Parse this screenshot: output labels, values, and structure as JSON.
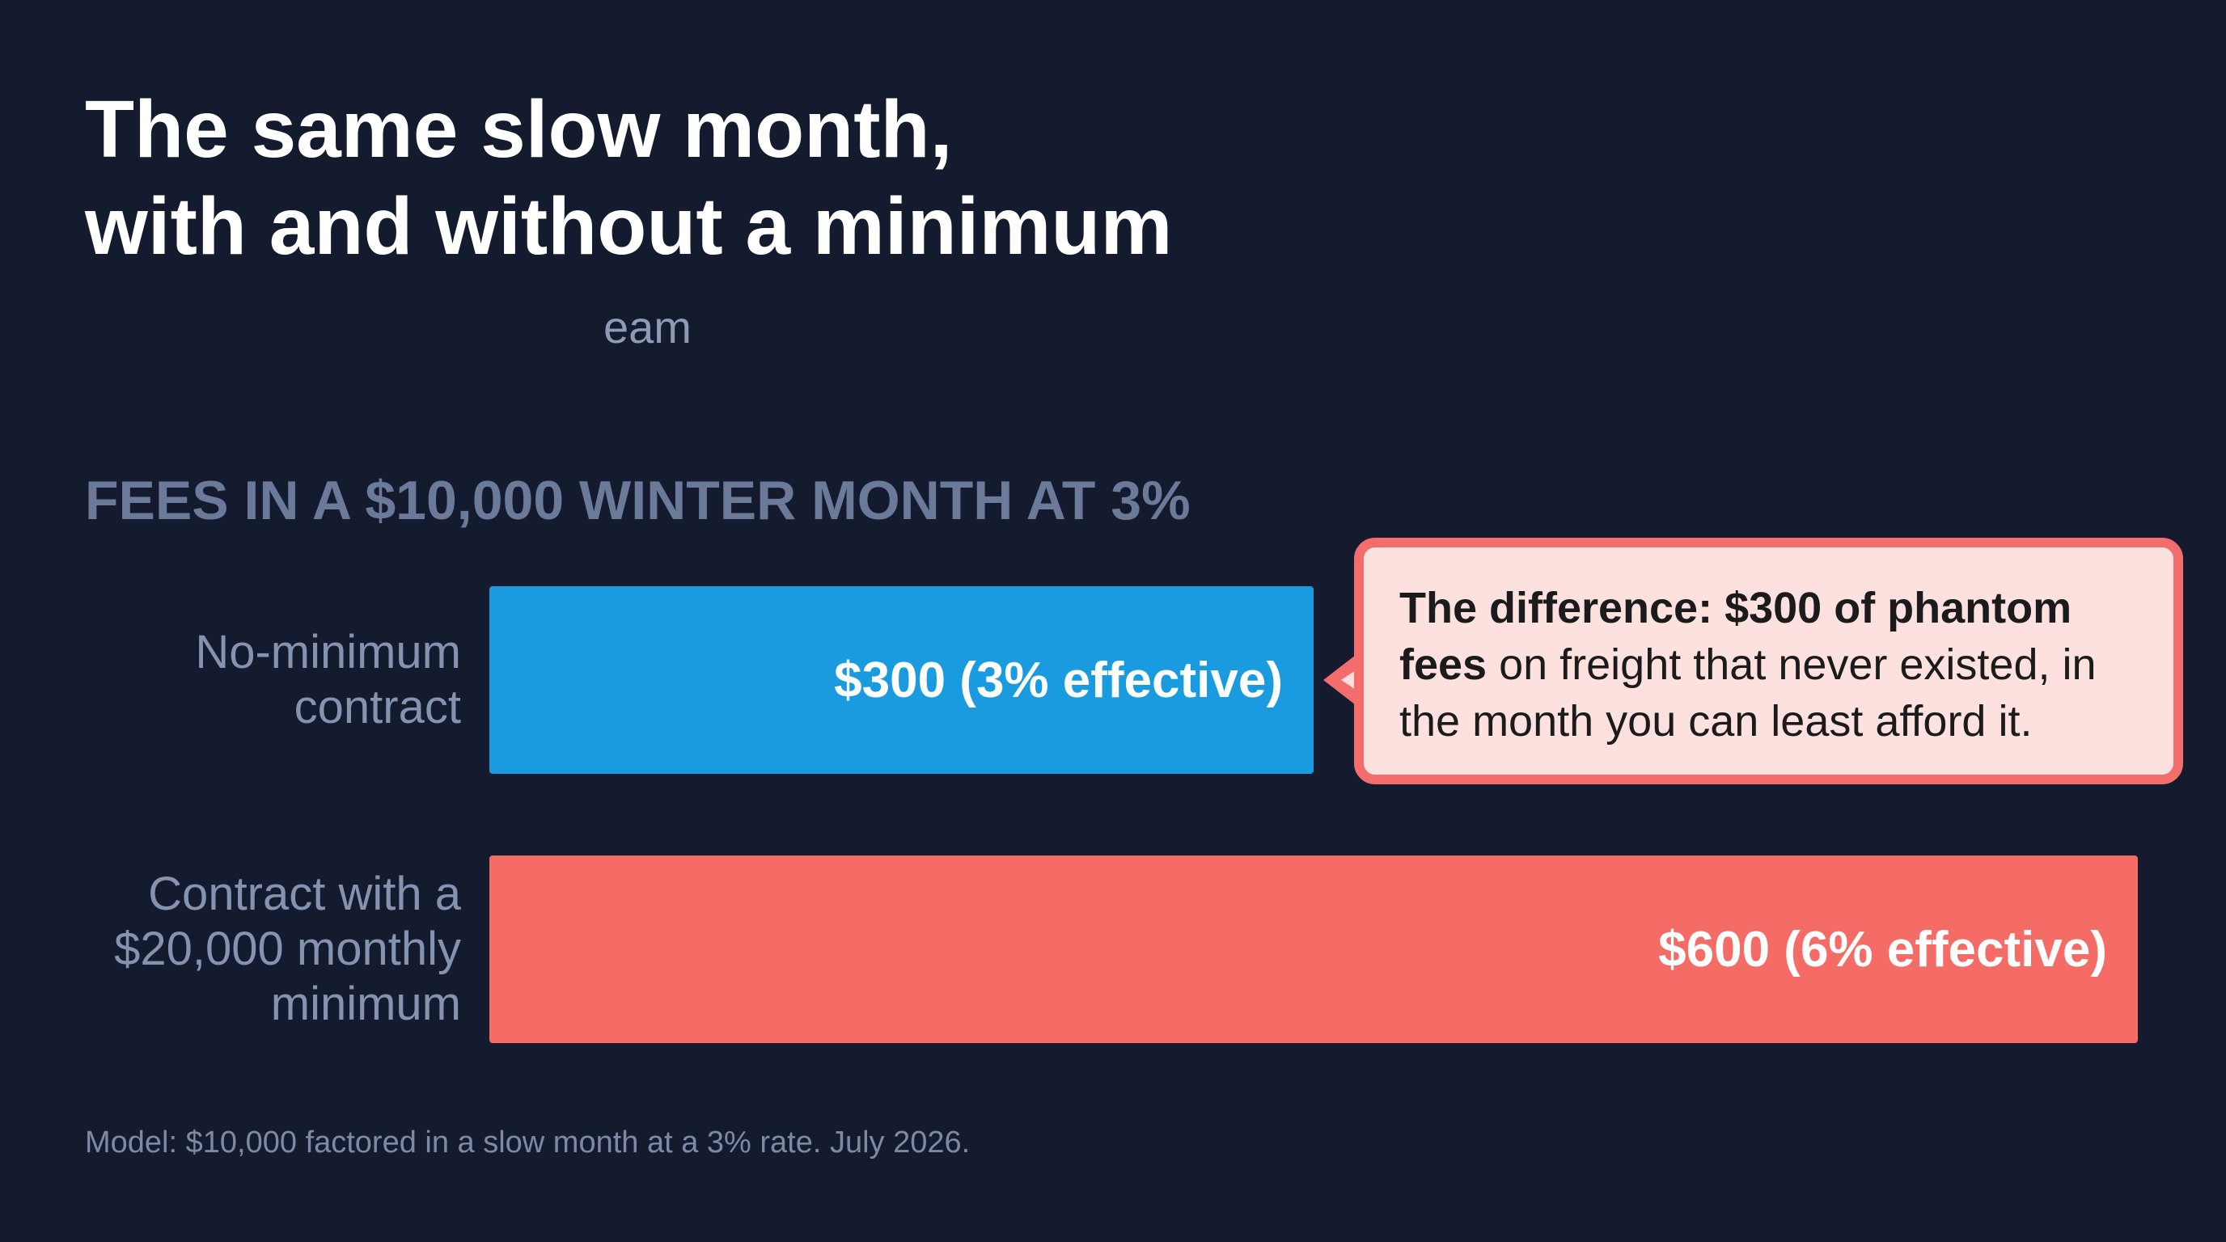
{
  "title": [
    "The same slow month,",
    "with and without a minimum"
  ],
  "subtitle": "eam",
  "chart_data": {
    "type": "bar",
    "orientation": "horizontal",
    "title": "FEES IN A $10,000 WINTER MONTH AT 3%",
    "categories": [
      "No-minimum contract",
      "Contract with a $20,000 monthly minimum"
    ],
    "values": [
      300,
      600
    ],
    "value_labels": [
      "$300 (3% effective)",
      "$600 (6% effective)"
    ],
    "colors": [
      "#1a9be0",
      "#f56b66"
    ],
    "annotation": {
      "bold": "The difference: $300 of phantom fees",
      "text": " on freight that never existed, in the month you can least afford it."
    }
  },
  "footer": "Model: $10,000 factored in a slow month at a 3% rate. July 2026."
}
